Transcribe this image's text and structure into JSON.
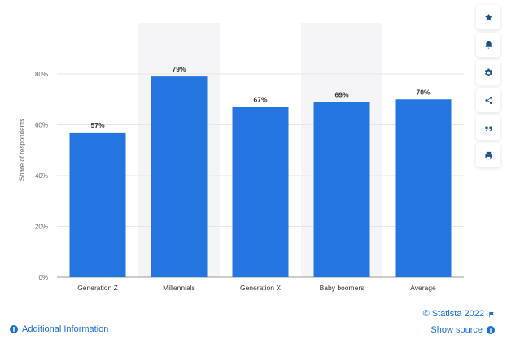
{
  "chart_data": {
    "type": "bar",
    "categories": [
      "Generation Z",
      "Millennials",
      "Generation X",
      "Baby boomers",
      "Average"
    ],
    "values": [
      57,
      79,
      67,
      69,
      70
    ],
    "value_labels": [
      "57%",
      "79%",
      "67%",
      "69%",
      "70%"
    ],
    "ylabel": "Share of respondents",
    "ylim": [
      0,
      80
    ],
    "yticks": [
      0,
      20,
      40,
      60,
      80
    ],
    "ytick_labels": [
      "0%",
      "20%",
      "40%",
      "60%",
      "80%"
    ],
    "grid": true,
    "bar_color": "#2475e0",
    "highlight_color": "#f5f5f8",
    "highlighted_categories": [
      "Millennials",
      "Baby boomers"
    ]
  },
  "sidebar": {
    "buttons": [
      {
        "icon": "star-icon",
        "name": "favorite-button"
      },
      {
        "icon": "bell-icon",
        "name": "notification-button"
      },
      {
        "icon": "gear-icon",
        "name": "settings-button"
      },
      {
        "icon": "share-icon",
        "name": "share-button"
      },
      {
        "icon": "quote-icon",
        "name": "cite-button"
      },
      {
        "icon": "print-icon",
        "name": "print-button"
      }
    ]
  },
  "footer": {
    "credit": "© Statista 2022",
    "show_source": "Show source",
    "additional_info": "Additional Information"
  }
}
